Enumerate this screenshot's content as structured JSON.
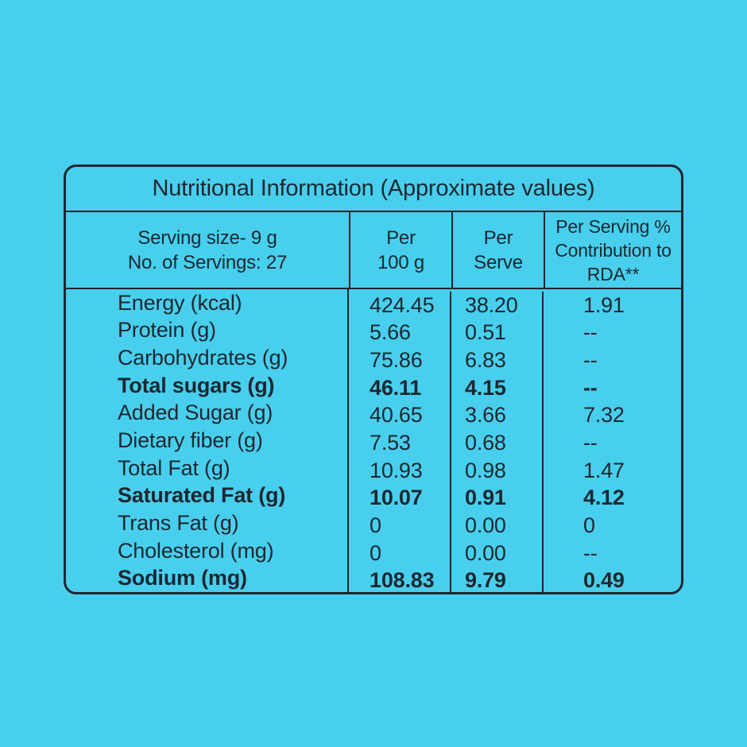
{
  "colors": {
    "background": "#48CFED",
    "ink": "#1D2730"
  },
  "table": {
    "title": "Nutritional Information (Approximate values)",
    "header": {
      "serving_size": "Serving size- 9 g",
      "servings_count": "No. of Servings: 27",
      "per_100g_line1": "Per",
      "per_100g_line2": "100 g",
      "per_serve_line1": "Per",
      "per_serve_line2": "Serve",
      "rda": "Per Serving % Contribution to RDA**"
    },
    "rows": [
      {
        "label": "Energy (kcal)",
        "per_100g": "424.45",
        "per_serve": "38.20",
        "rda": "1.91",
        "bold": false
      },
      {
        "label": "Protein (g)",
        "per_100g": "5.66",
        "per_serve": "0.51",
        "rda": "--",
        "bold": false
      },
      {
        "label": "Carbohydrates (g)",
        "per_100g": "75.86",
        "per_serve": "6.83",
        "rda": "--",
        "bold": false
      },
      {
        "label": "Total sugars (g)",
        "per_100g": "46.11",
        "per_serve": "4.15",
        "rda": "--",
        "bold": true
      },
      {
        "label": "Added Sugar (g)",
        "per_100g": "40.65",
        "per_serve": "3.66",
        "rda": "7.32",
        "bold": false
      },
      {
        "label": "Dietary fiber (g)",
        "per_100g": "7.53",
        "per_serve": "0.68",
        "rda": "--",
        "bold": false
      },
      {
        "label": "Total Fat (g)",
        "per_100g": "10.93",
        "per_serve": "0.98",
        "rda": "1.47",
        "bold": false
      },
      {
        "label": "Saturated Fat (g)",
        "per_100g": "10.07",
        "per_serve": "0.91",
        "rda": "4.12",
        "bold": true
      },
      {
        "label": "Trans Fat (g)",
        "per_100g": "0",
        "per_serve": "0.00",
        "rda": "0",
        "bold": false
      },
      {
        "label": "Cholesterol (mg)",
        "per_100g": "0",
        "per_serve": "0.00",
        "rda": "--",
        "bold": false
      },
      {
        "label": "Sodium (mg)",
        "per_100g": "108.83",
        "per_serve": "9.79",
        "rda": "0.49",
        "bold": true
      }
    ]
  }
}
